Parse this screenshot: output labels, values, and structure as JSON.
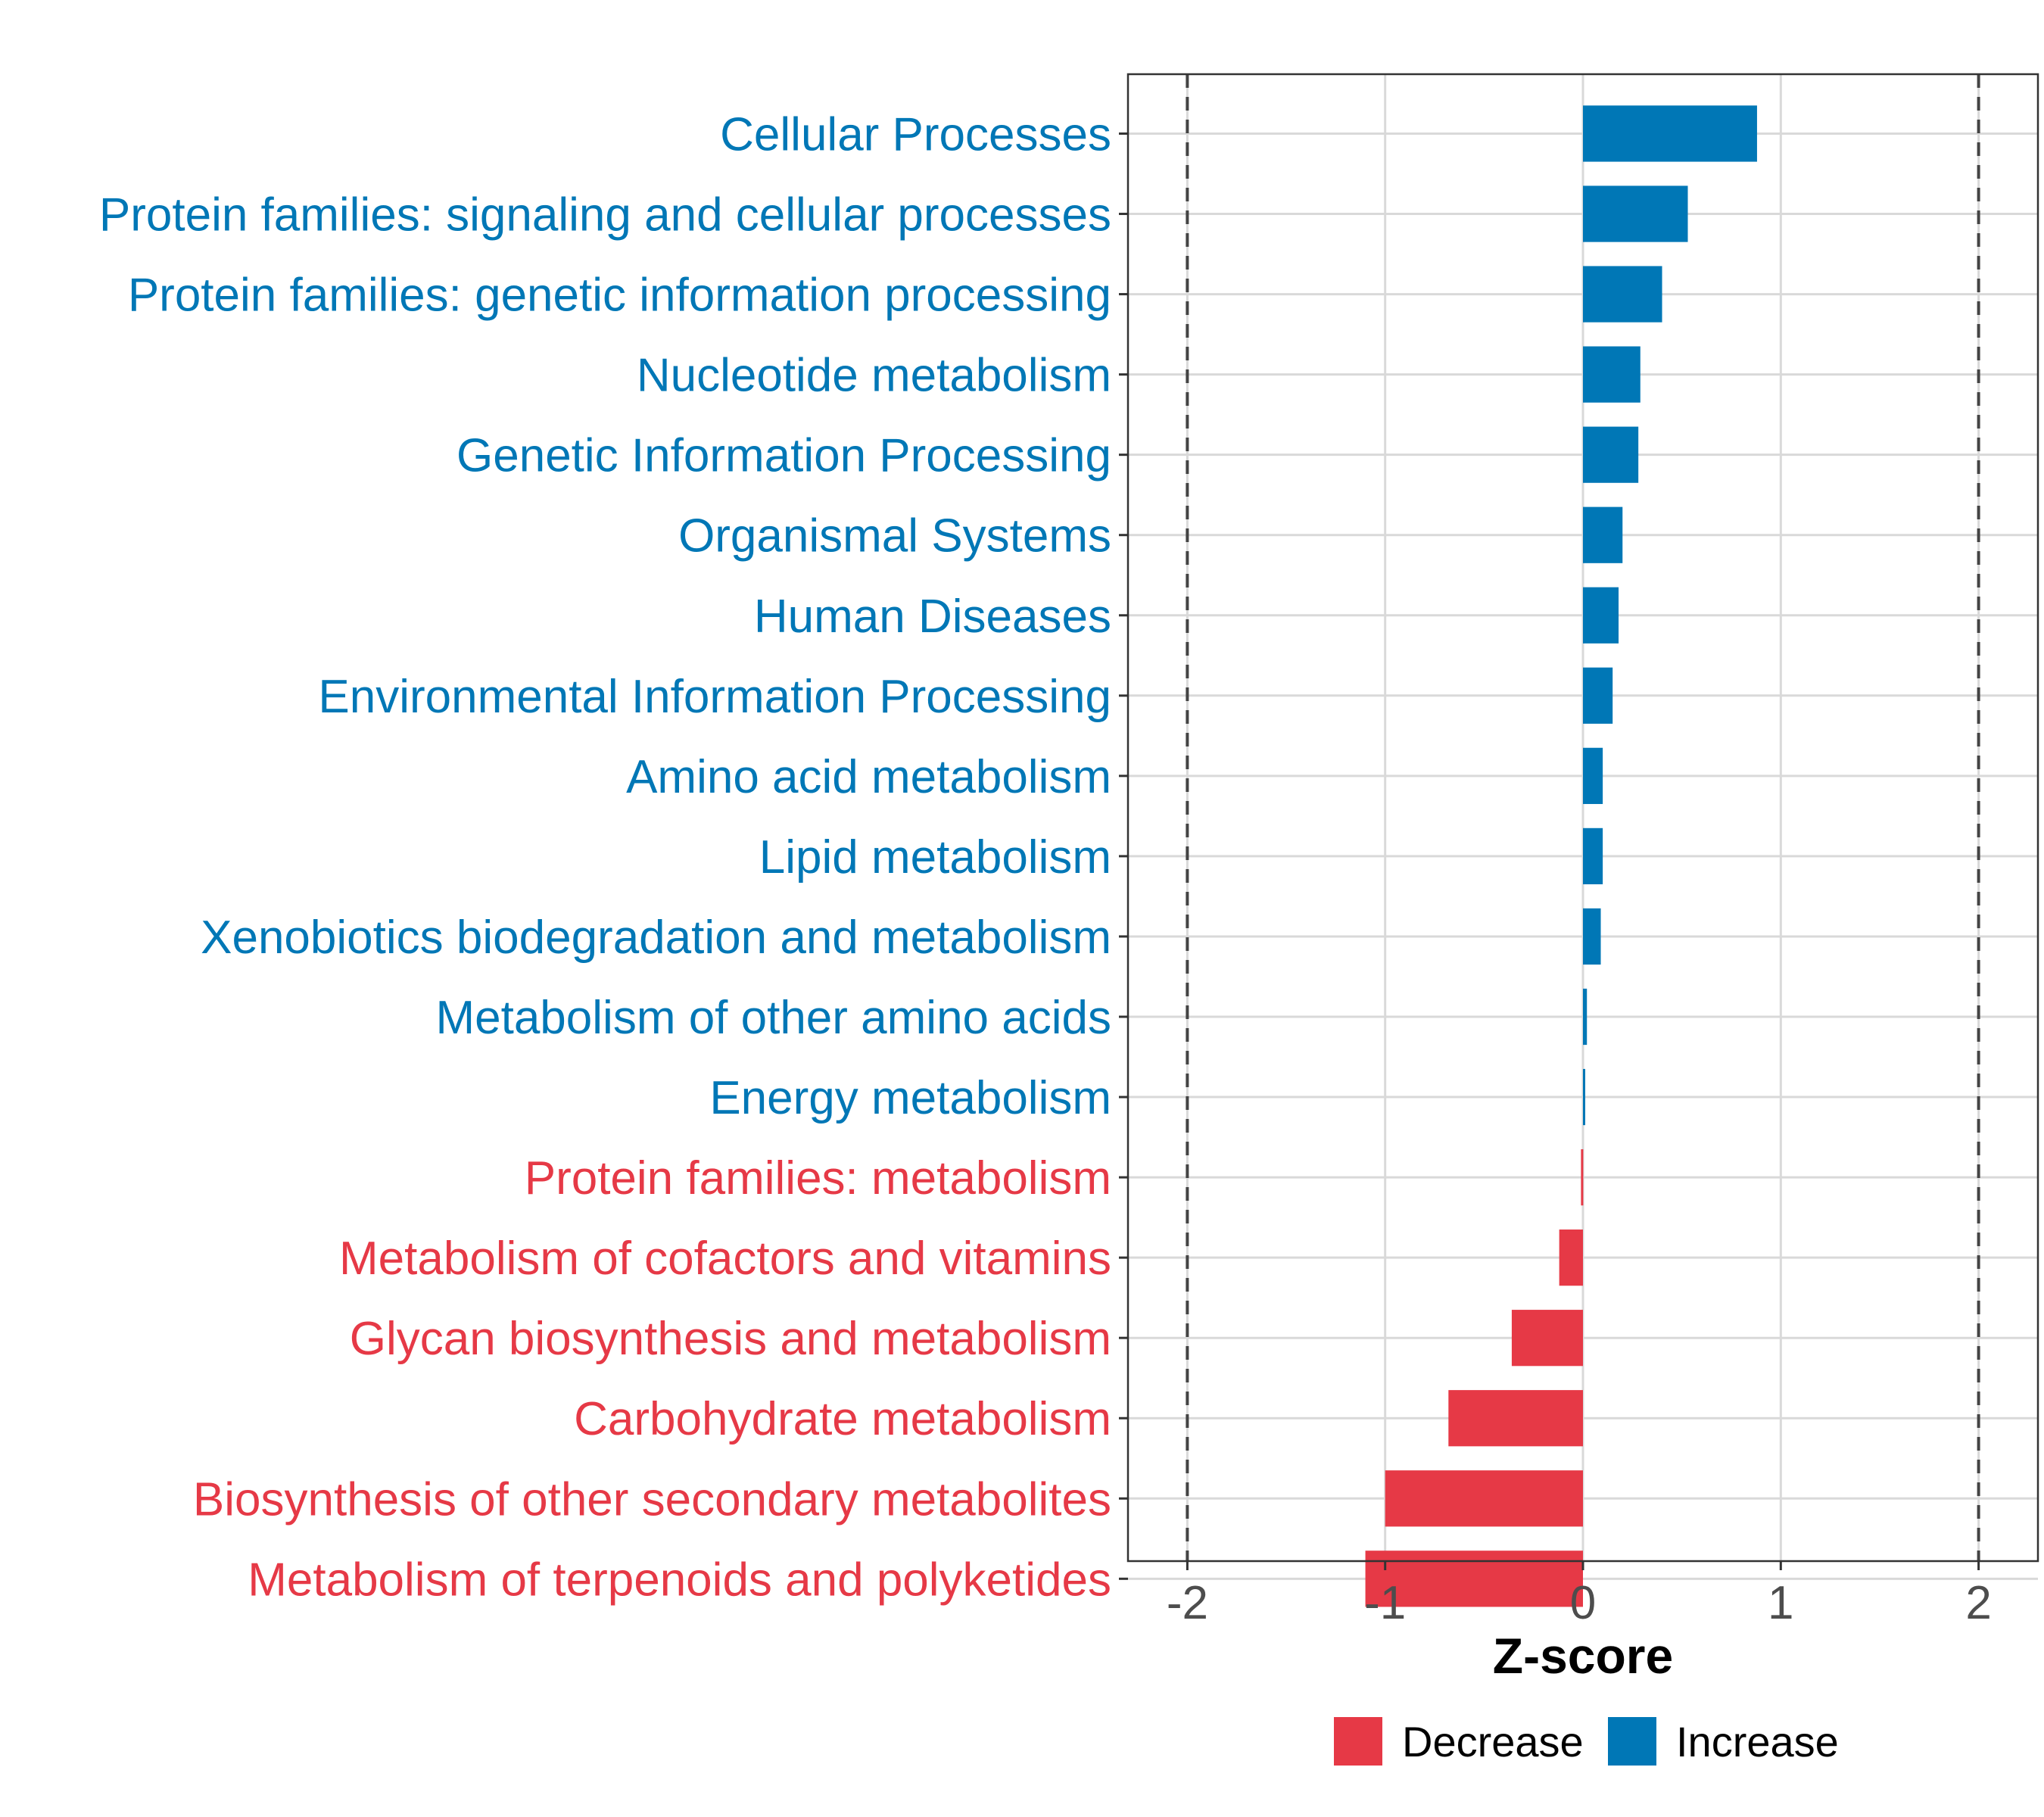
{
  "chart_data": {
    "type": "bar",
    "orientation": "horizontal",
    "xlabel": "Z-score",
    "xlim": [
      -2.3,
      2.3
    ],
    "xticks": [
      -2,
      -1,
      0,
      1,
      2
    ],
    "xtick_labels": [
      "-2",
      "-1",
      "0",
      "1",
      "2"
    ],
    "reference_lines": [
      -2,
      2
    ],
    "grid": true,
    "legend_placement": "bottom",
    "categories": [
      "Cellular Processes",
      "Protein families: signaling and cellular processes",
      "Protein families: genetic information processing",
      "Nucleotide metabolism",
      "Genetic Information Processing",
      "Organismal Systems",
      "Human Diseases",
      "Environmental Information Processing",
      "Amino acid metabolism",
      "Lipid metabolism",
      "Xenobiotics biodegradation and metabolism",
      "Metabolism of other amino acids",
      "Energy metabolism",
      "Protein families: metabolism",
      "Metabolism of cofactors and vitamins",
      "Glycan biosynthesis and metabolism",
      "Carbohydrate metabolism",
      "Biosynthesis of other secondary metabolites",
      "Metabolism of terpenoids and polyketides"
    ],
    "values": [
      0.88,
      0.53,
      0.4,
      0.29,
      0.28,
      0.2,
      0.18,
      0.15,
      0.1,
      0.1,
      0.09,
      0.02,
      0.01,
      -0.01,
      -0.12,
      -0.36,
      -0.68,
      -1.0,
      -1.1
    ],
    "groups": [
      "Increase",
      "Increase",
      "Increase",
      "Increase",
      "Increase",
      "Increase",
      "Increase",
      "Increase",
      "Increase",
      "Increase",
      "Increase",
      "Increase",
      "Increase",
      "Decrease",
      "Decrease",
      "Decrease",
      "Decrease",
      "Decrease",
      "Decrease"
    ],
    "legend": [
      {
        "name": "Decrease",
        "color": "#e63946"
      },
      {
        "name": "Increase",
        "color": "#0077b6"
      }
    ]
  }
}
